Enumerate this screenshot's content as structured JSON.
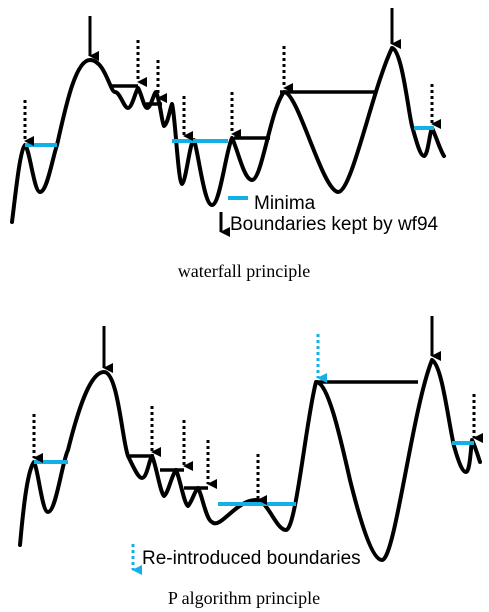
{
  "panels": [
    {
      "legend": {
        "minima_label": "Minima",
        "kept_label": "Boundaries kept by wf94"
      },
      "caption": "waterfall principle"
    },
    {
      "legend": {
        "reintroduced_label": "Re-introduced boundaries"
      },
      "caption": "P algorithm principle"
    }
  ],
  "colors": {
    "curve": "#000000",
    "minima": "#13b0e6",
    "reintroduced": "#13b0e6"
  },
  "icons": [
    "solid-down-arrow-icon",
    "dotted-down-arrow-icon",
    "minima-swatch-icon"
  ]
}
